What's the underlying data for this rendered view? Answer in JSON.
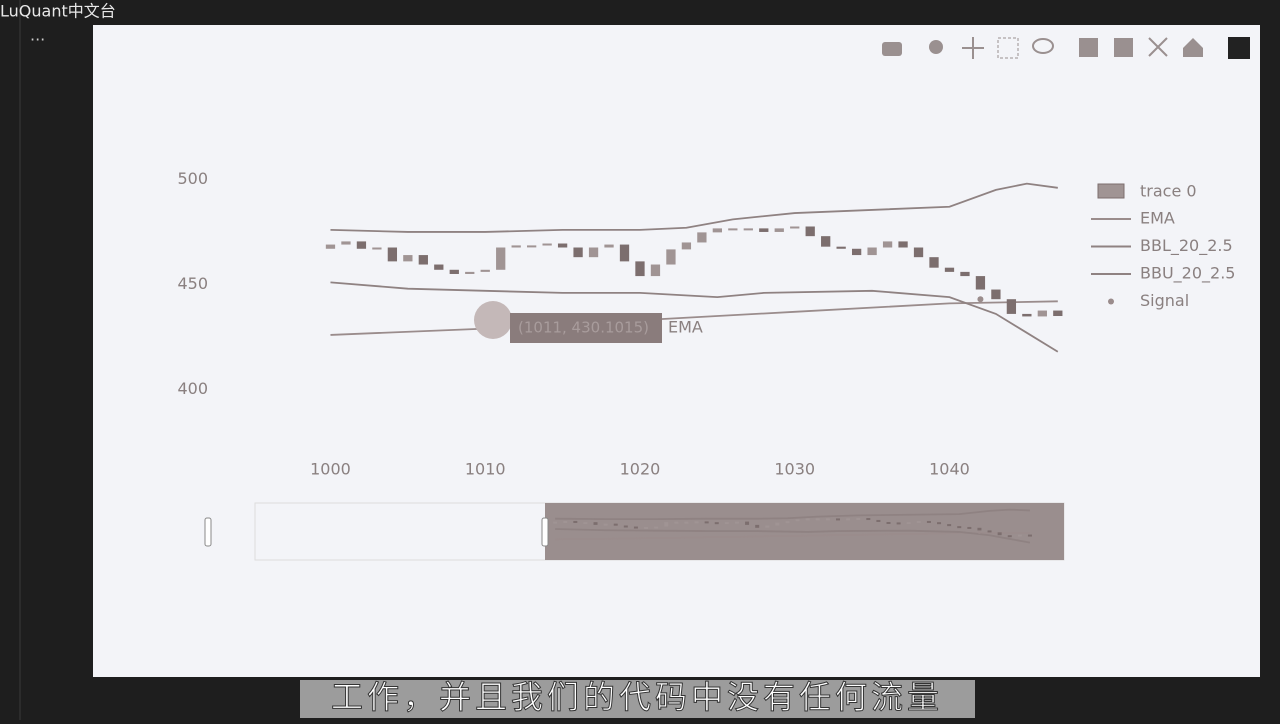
{
  "ui": {
    "watermark": "LuQuant中文台",
    "ellipsis": "...",
    "subtitle": "工作，并且我们的代码中没有任何流量",
    "hover_text": "(1011, 430.1015)",
    "hover_name": "EMA"
  },
  "chart_data": {
    "type": "candlestick",
    "x": [
      1000,
      1001,
      1002,
      1003,
      1004,
      1005,
      1006,
      1007,
      1008,
      1009,
      1010,
      1011,
      1012,
      1013,
      1014,
      1015,
      1016,
      1017,
      1018,
      1019,
      1020,
      1021,
      1022,
      1023,
      1024,
      1025,
      1026,
      1027,
      1028,
      1029,
      1030,
      1031,
      1032,
      1033,
      1034,
      1035,
      1036,
      1037,
      1038,
      1039,
      1040,
      1041,
      1042,
      1043,
      1044,
      1045,
      1046,
      1047
    ],
    "open": [
      467,
      469,
      470.5,
      467,
      467.6,
      461,
      464,
      459.5,
      457,
      455,
      456,
      457,
      467.6,
      468.6,
      468.6,
      469.5,
      467.6,
      463,
      467.6,
      469,
      461,
      454,
      459.5,
      466.7,
      470,
      474.8,
      476.7,
      476.7,
      476.7,
      475,
      476.7,
      477.6,
      473,
      468,
      467,
      464,
      467.6,
      470.5,
      467.6,
      463,
      458,
      456,
      454,
      447.6,
      443,
      436,
      434.8,
      437.6
    ],
    "close": [
      469,
      470.5,
      467,
      467.6,
      461,
      464,
      459.5,
      457,
      455,
      456,
      457,
      467.6,
      468.6,
      468.6,
      469.5,
      467.6,
      463,
      467.6,
      469,
      461,
      454,
      459.5,
      466.7,
      470,
      474.8,
      476.7,
      476.7,
      476.7,
      475,
      476.7,
      477.6,
      473,
      468,
      467,
      464,
      467.6,
      470.5,
      467.6,
      463,
      458,
      456,
      454,
      447.6,
      443,
      436,
      434.8,
      437.6,
      435
    ],
    "candle_name": "trace 0",
    "increasing_color": "#a09494",
    "decreasing_color": "#7c6e6e",
    "series": [
      {
        "name": "EMA",
        "color": "#9a8c8c",
        "x": [
          1000,
          1010,
          1020,
          1030,
          1040,
          1047
        ],
        "values": [
          426,
          429,
          433,
          437,
          441,
          442
        ]
      },
      {
        "name": "BBL_20_2.5",
        "color": "#8f8282",
        "x": [
          1000,
          1005,
          1010,
          1015,
          1020,
          1025,
          1028,
          1035,
          1040,
          1043,
          1045,
          1047
        ],
        "values": [
          451,
          448,
          447,
          446,
          446,
          444,
          446,
          447,
          444,
          436,
          427,
          418
        ]
      },
      {
        "name": "BBU_20_2.5",
        "color": "#8f8282",
        "x": [
          1000,
          1005,
          1010,
          1015,
          1020,
          1023,
          1026,
          1030,
          1040,
          1043,
          1045,
          1047
        ],
        "values": [
          476,
          475,
          475,
          476,
          476,
          477,
          481,
          484,
          487,
          495,
          498,
          496
        ]
      },
      {
        "name": "Signal",
        "color": "#9a8c8c",
        "mode": "markers",
        "x": [
          1042
        ],
        "values": [
          443
        ]
      }
    ],
    "xlim": [
      999,
      1047.4
    ],
    "ylim": [
      376,
      514
    ],
    "xticks": [
      1000,
      1010,
      1020,
      1030,
      1040
    ],
    "yticks": [
      400,
      450,
      500
    ]
  }
}
